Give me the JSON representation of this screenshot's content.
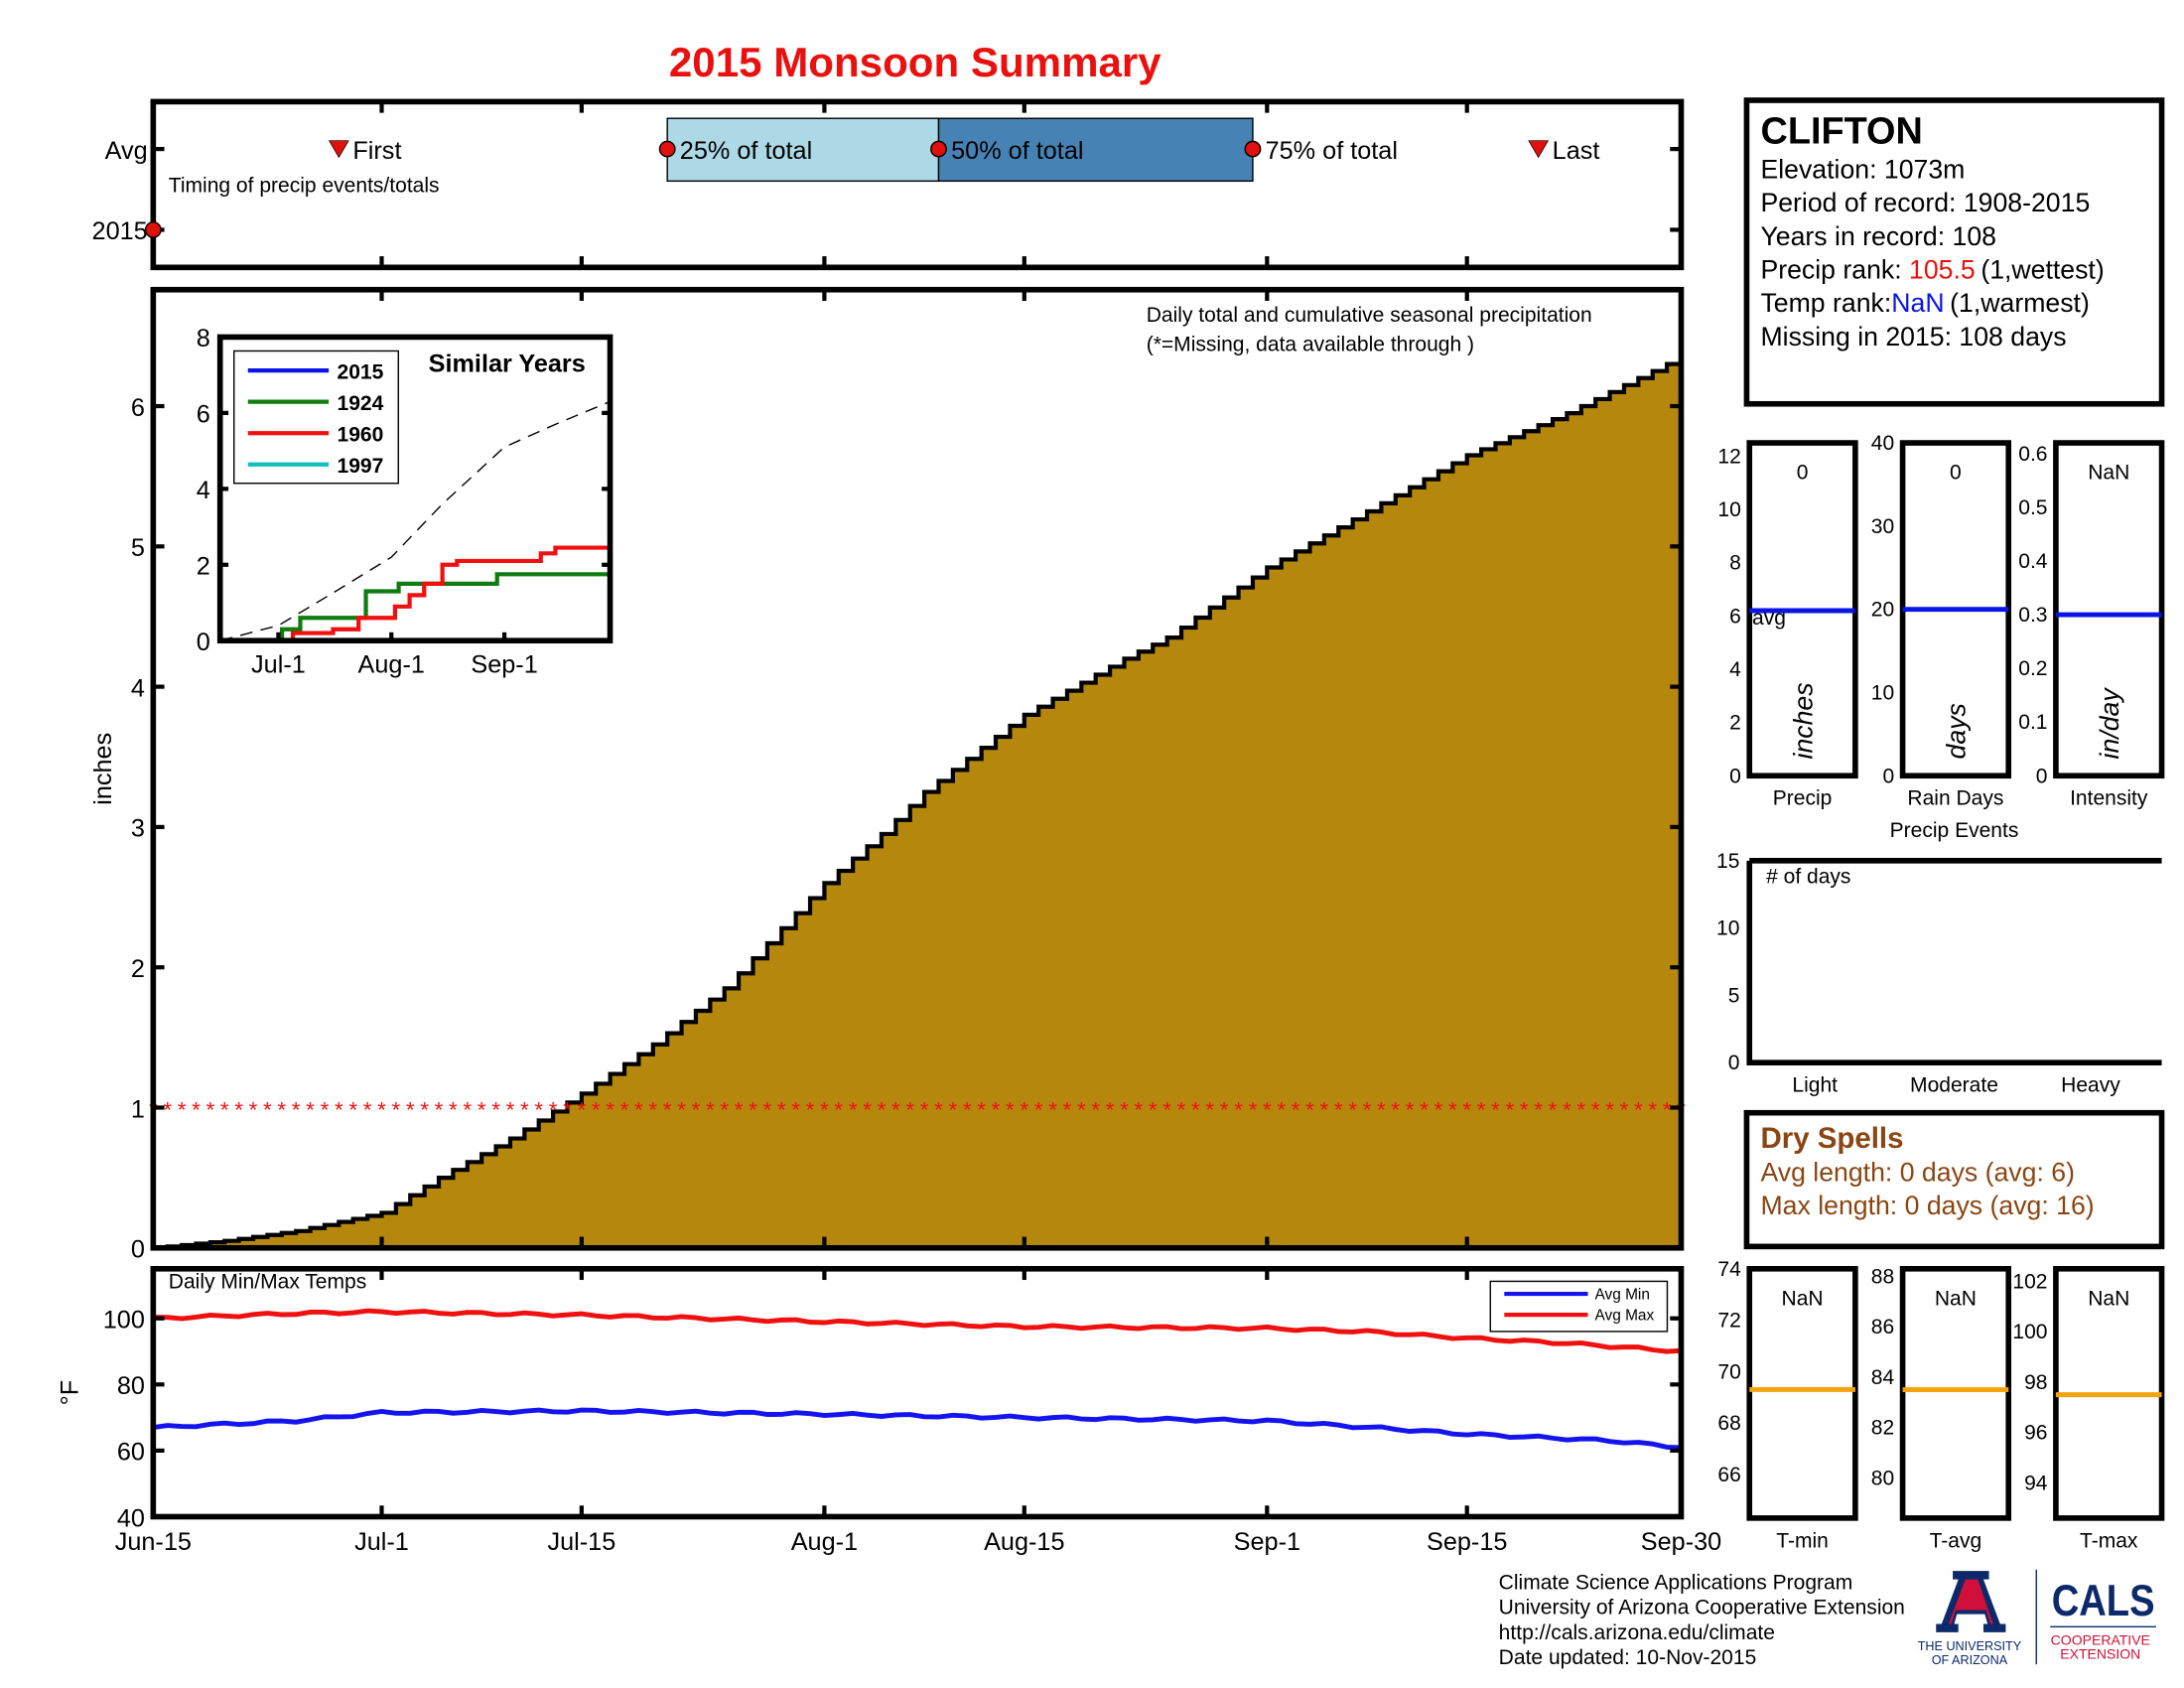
{
  "title": "2015 Monsoon Summary",
  "colors": {
    "title": "#e8110f",
    "precip_fill": "#b5870d",
    "q25_fill": "#add8e6",
    "q50_fill": "#4682b4",
    "marker": "#e0100c",
    "avg_line": "#0a14e6",
    "tbar_line": "#f5a30a",
    "dry_text": "#8b4513",
    "max_temp": "#f01010",
    "min_temp": "#1414f0"
  },
  "date_ticks": [
    "Jun-15",
    "Jul-1",
    "Jul-15",
    "Aug-1",
    "Aug-15",
    "Sep-1",
    "Sep-15",
    "Sep-30"
  ],
  "date_tick_md": [
    "06-15",
    "07-01",
    "07-15",
    "08-01",
    "08-15",
    "09-01",
    "09-15",
    "09-30"
  ],
  "timing": {
    "row_avg": "Avg",
    "row_2015": "2015",
    "caption": "Timing of precip events/totals",
    "first_label": "First",
    "last_label": "Last",
    "q25_label": "25% of total",
    "q50_label": "50% of total",
    "q75_label": "75% of total",
    "avg_dates": {
      "first": "06-28",
      "q25": "07-21",
      "q50": "08-09",
      "q75": "08-31",
      "last": "09-20"
    },
    "obs_2015": "06-15"
  },
  "station": {
    "name": "CLIFTON",
    "elevation": "Elevation: 1073m",
    "period": "Period of record: 1908-2015",
    "years": "Years in record: 108",
    "precip_rank_label": "Precip rank: ",
    "precip_rank_value": "105.5",
    "precip_rank_note": "(1,wettest)",
    "temp_rank_label": "Temp rank:",
    "temp_rank_value": "NaN",
    "temp_rank_note": "(1,warmest)",
    "missing": "Missing in 2015: 108 days"
  },
  "dry_spells": {
    "title": "Dry Spells",
    "avg": "Avg length: 0 days (avg: 6)",
    "max": "Max length: 0 days (avg: 16)"
  },
  "footer": {
    "line1": "Climate Science Applications Program",
    "line2": "University of Arizona Cooperative Extension",
    "line3": "http://cals.arizona.edu/climate",
    "line4": " Date updated: 10-Nov-2015",
    "logo_ua": "THE UNIVERSITY OF ARIZONA",
    "logo_cals": "CALS",
    "logo_coop": "COOPERATIVE EXTENSION"
  },
  "chart_data": [
    {
      "id": "cumulative",
      "type": "area",
      "title": "Daily total and cumulative seasonal precipitation",
      "subtitle": "(*=Missing, data available through )",
      "ylabel": "inches",
      "ylim": [
        0,
        6.83
      ],
      "yticks": [
        "0",
        "1",
        "2",
        "3",
        "4",
        "5",
        "6"
      ],
      "x": [
        "06-15",
        "06-20",
        "06-25",
        "07-01",
        "07-05",
        "07-10",
        "07-15",
        "07-20",
        "07-25",
        "08-01",
        "08-05",
        "08-08",
        "08-15",
        "08-22",
        "08-25",
        "09-01",
        "09-08",
        "09-15",
        "09-22",
        "09-30"
      ],
      "values": [
        0,
        0.05,
        0.12,
        0.25,
        0.5,
        0.78,
        1.1,
        1.45,
        1.85,
        2.6,
        2.95,
        3.25,
        3.8,
        4.2,
        4.35,
        4.85,
        5.25,
        5.65,
        5.95,
        6.35
      ],
      "missing_marker_value": 1
    },
    {
      "id": "similar-years",
      "type": "line",
      "title": "Similar Years",
      "ylim": [
        0,
        8
      ],
      "yticks": [
        "0",
        "2",
        "4",
        "6",
        "8"
      ],
      "xticks": [
        "Jul-1",
        "Aug-1",
        "Sep-1"
      ],
      "xtick_md": [
        "07-01",
        "08-01",
        "09-01"
      ],
      "average": {
        "x": [
          "06-15",
          "07-01",
          "07-15",
          "08-01",
          "08-15",
          "09-01",
          "09-15",
          "09-30"
        ],
        "values": [
          0,
          0.4,
          1.2,
          2.2,
          3.6,
          5.1,
          5.7,
          6.3
        ]
      },
      "series": [
        {
          "name": "2015",
          "color": "#0a14e6",
          "x": [],
          "values": []
        },
        {
          "name": "1924",
          "color": "#107c10",
          "x": [
            "06-15",
            "07-02",
            "07-07",
            "07-25",
            "08-03",
            "08-30",
            "09-30"
          ],
          "values": [
            0,
            0.3,
            0.6,
            1.3,
            1.5,
            1.75,
            1.75
          ]
        },
        {
          "name": "1960",
          "color": "#f01010",
          "x": [
            "06-15",
            "07-05",
            "07-16",
            "07-23",
            "08-02",
            "08-06",
            "08-10",
            "08-15",
            "08-19",
            "09-11",
            "09-15",
            "09-30"
          ],
          "values": [
            0,
            0.2,
            0.3,
            0.6,
            0.9,
            1.2,
            1.5,
            2.0,
            2.1,
            2.3,
            2.45,
            2.45
          ]
        },
        {
          "name": "1997",
          "color": "#10c0c0",
          "x": [],
          "values": []
        }
      ]
    },
    {
      "id": "temps",
      "type": "line",
      "title": "Daily Min/Max Temps",
      "ylabel": "°F",
      "ylim": [
        40,
        115
      ],
      "yticks": [
        "40",
        "60",
        "80",
        "100"
      ],
      "series": [
        {
          "name": "Avg Min",
          "color": "#1414f0",
          "x": [
            "06-15",
            "06-25",
            "07-01",
            "07-15",
            "08-01",
            "08-15",
            "09-01",
            "09-10",
            "09-15",
            "09-25",
            "09-30"
          ],
          "values": [
            67,
            69,
            71.5,
            72,
            71,
            70,
            69,
            66.5,
            65,
            63,
            61
          ]
        },
        {
          "name": "Avg Max",
          "color": "#f01010",
          "x": [
            "06-15",
            "06-25",
            "07-01",
            "07-15",
            "08-01",
            "08-15",
            "09-01",
            "09-08",
            "09-15",
            "09-22",
            "09-30"
          ],
          "values": [
            100,
            101.5,
            102,
            101,
            99,
            97.5,
            97,
            96,
            94,
            92.5,
            90
          ]
        }
      ]
    },
    {
      "id": "precip-events",
      "type": "bar",
      "xlabel": "Precip Events",
      "panels": [
        {
          "label": "Precip",
          "unit": "inches",
          "value": "0",
          "avg": 6.2,
          "ylim": [
            0,
            12.5
          ],
          "yticks": [
            "0",
            "2",
            "4",
            "6",
            "8",
            "10",
            "12"
          ],
          "avg_label": "avg"
        },
        {
          "label": "Rain Days",
          "unit": "days",
          "value": "0",
          "avg": 20,
          "ylim": [
            0,
            40
          ],
          "yticks": [
            "0",
            "10",
            "20",
            "30",
            "40"
          ]
        },
        {
          "label": "Intensity",
          "unit": "in/day",
          "value": "NaN",
          "avg": 0.3,
          "ylim": [
            0,
            0.62
          ],
          "yticks": [
            "0",
            "0.1",
            "0.2",
            "0.3",
            "0.4",
            "0.5",
            "0.6"
          ]
        }
      ]
    },
    {
      "id": "days-by-intensity",
      "type": "bar",
      "title": "# of days",
      "categories": [
        "Light",
        "Moderate",
        "Heavy"
      ],
      "values": [
        0,
        0,
        0
      ],
      "ylim": [
        0,
        15
      ],
      "yticks": [
        "0",
        "5",
        "10",
        "15"
      ]
    },
    {
      "id": "temp-bars",
      "type": "bar",
      "panels": [
        {
          "label": "T-min",
          "value": "NaN",
          "avg": 69.3,
          "ylim": [
            64.3,
            74
          ],
          "yticks": [
            "66",
            "68",
            "70",
            "72",
            "74"
          ]
        },
        {
          "label": "T-avg",
          "value": "NaN",
          "avg": 83.5,
          "ylim": [
            78.4,
            88.3
          ],
          "yticks": [
            "80",
            "82",
            "84",
            "86",
            "88"
          ]
        },
        {
          "label": "T-max",
          "value": "NaN",
          "avg": 97.5,
          "ylim": [
            92.6,
            102.5
          ],
          "yticks": [
            "94",
            "96",
            "98",
            "100",
            "102"
          ]
        }
      ]
    }
  ]
}
